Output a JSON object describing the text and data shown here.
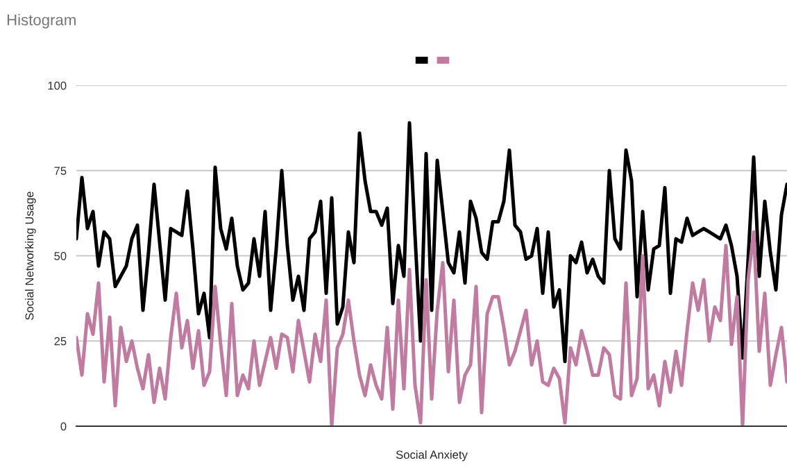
{
  "chart_data": {
    "type": "line",
    "title": "Histogram",
    "xlabel": "Social Anxiety",
    "ylabel": "Social Networking Usage",
    "categories": [
      null,
      null,
      null,
      null,
      null,
      null,
      null,
      null,
      null,
      null,
      null,
      null,
      null,
      null,
      null,
      null,
      null,
      null,
      null,
      null,
      null,
      null,
      null,
      null,
      null,
      null,
      null,
      null,
      null,
      null,
      null,
      null,
      null,
      null,
      null,
      null,
      null,
      null,
      null,
      null,
      null,
      null,
      null,
      null,
      null,
      null,
      null,
      null,
      null,
      null,
      null,
      null,
      null,
      null,
      null,
      null,
      null,
      null,
      null,
      null,
      null,
      null,
      null,
      null,
      null,
      null,
      null,
      null,
      null,
      null,
      null,
      null,
      null,
      null,
      null,
      null,
      null,
      null,
      null,
      null,
      null,
      null,
      null,
      null,
      null,
      null,
      null,
      null,
      null,
      null,
      null,
      null,
      null,
      null,
      null,
      null,
      null,
      null,
      null,
      null,
      null,
      null,
      null,
      null,
      null,
      null,
      null,
      null,
      null,
      null,
      null,
      null,
      null,
      null,
      null,
      null,
      null,
      null,
      null,
      null,
      null,
      null,
      null,
      null,
      null,
      null,
      null,
      null,
      null
    ],
    "ylim": [
      0,
      100
    ],
    "yticks": [
      0,
      25,
      50,
      75,
      100
    ],
    "tick_labels": "y",
    "grid": "y",
    "line_style": "solid",
    "series": [
      {
        "color": "#000000",
        "values": [
          55,
          73,
          58,
          63,
          47,
          57,
          55,
          41,
          44,
          47,
          55,
          59,
          34,
          51,
          71,
          54,
          37,
          58,
          57,
          56,
          69,
          52,
          33,
          39,
          26,
          76,
          58,
          52,
          61,
          47,
          40,
          42,
          55,
          44,
          63,
          34,
          52,
          75,
          53,
          37,
          44,
          34,
          55,
          57,
          66,
          39,
          67,
          30,
          35,
          57,
          48,
          86,
          72,
          63,
          63,
          59,
          64,
          36,
          53,
          44,
          89,
          56,
          25,
          80,
          34,
          78,
          63,
          48,
          45,
          57,
          42,
          66,
          61,
          51,
          49,
          60,
          60,
          66,
          81,
          59,
          57,
          49,
          50,
          58,
          39,
          57,
          35,
          40,
          19,
          50,
          48,
          54,
          45,
          49,
          44,
          42,
          75,
          55,
          52,
          81,
          72,
          38,
          63,
          40,
          52,
          53,
          70,
          39,
          55,
          54,
          61,
          56,
          57,
          58,
          57,
          56,
          55,
          59,
          53,
          44,
          20,
          49,
          79,
          44,
          66,
          51,
          40,
          62,
          71
        ]
      },
      {
        "color": "#c27ba0",
        "values": [
          26,
          15,
          33,
          27,
          42,
          13,
          32,
          6,
          29,
          19,
          25,
          17,
          11,
          21,
          7,
          17,
          8,
          26,
          39,
          23,
          31,
          17,
          28,
          12,
          16,
          41,
          24,
          9,
          36,
          9,
          15,
          11,
          25,
          12,
          19,
          26,
          17,
          27,
          26,
          16,
          31,
          22,
          13,
          27,
          19,
          37,
          0,
          23,
          27,
          37,
          25,
          15,
          9,
          18,
          12,
          8,
          29,
          5,
          37,
          11,
          46,
          12,
          1,
          43,
          8,
          34,
          48,
          16,
          37,
          7,
          15,
          18,
          41,
          4,
          33,
          38,
          38,
          29,
          18,
          22,
          28,
          34,
          18,
          25,
          13,
          12,
          17,
          14,
          1,
          23,
          18,
          28,
          22,
          15,
          15,
          23,
          21,
          9,
          8,
          42,
          9,
          14,
          50,
          11,
          15,
          6,
          19,
          10,
          22,
          12,
          28,
          42,
          34,
          43,
          25,
          35,
          31,
          53,
          24,
          38,
          0,
          43,
          57,
          22,
          39,
          12,
          21,
          29,
          13
        ]
      }
    ]
  }
}
